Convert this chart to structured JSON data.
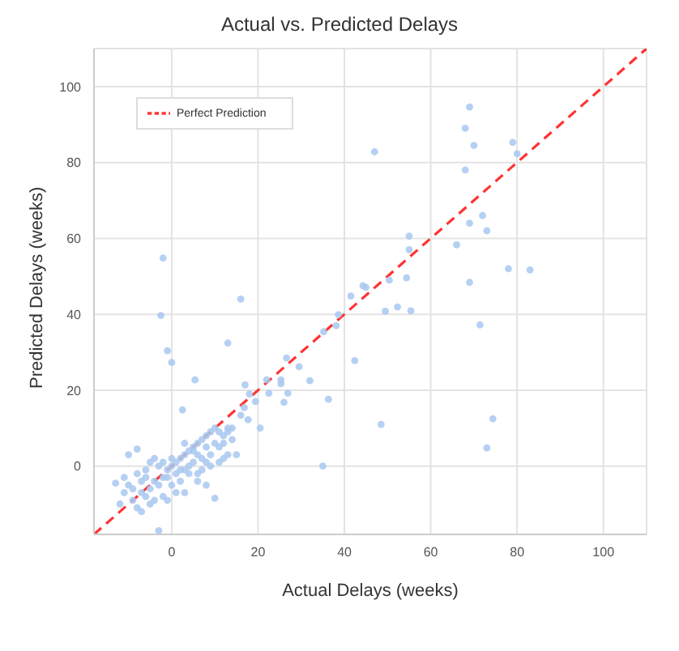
{
  "chart_data": {
    "type": "scatter",
    "title": "Actual vs. Predicted Delays",
    "xlabel": "Actual Delays (weeks)",
    "ylabel": "Predicted Delays (weeks)",
    "xlim": [
      -18,
      110
    ],
    "ylim": [
      -18,
      110
    ],
    "xticks": [
      0,
      20,
      40,
      60,
      80,
      100
    ],
    "yticks": [
      0,
      20,
      40,
      60,
      80,
      100
    ],
    "grid": true,
    "legend": "top left",
    "marker": "circle",
    "series": [
      {
        "color": "#a8c8f0",
        "x": [
          -2,
          -2.5,
          -1,
          0,
          16,
          13,
          5.4,
          2.5,
          47,
          69,
          68,
          70,
          79,
          80,
          68,
          55,
          55,
          66,
          69,
          72,
          73,
          78,
          83,
          69,
          54.4,
          50.4,
          52.3,
          49.5,
          55.4,
          71.4,
          44.3,
          45,
          41.5,
          38.6,
          38.1,
          35.2,
          42.4,
          36.3,
          48.5,
          74.4,
          73,
          35,
          26.6,
          29.5,
          32,
          22,
          25.3,
          25.3,
          22.5,
          26.9,
          26,
          17,
          18,
          19.4,
          17.7,
          20.5,
          16.8,
          16,
          -13,
          -10,
          -8,
          -11,
          -9,
          -8,
          -7,
          -6,
          -5,
          -4,
          -3,
          -2,
          -1,
          0,
          1,
          2,
          3,
          4,
          5,
          6,
          7,
          8,
          9,
          10,
          11,
          12,
          13,
          14,
          15,
          12,
          10,
          8,
          6,
          4,
          2,
          0,
          -2,
          -4,
          -6,
          -8,
          -10,
          -5,
          -3,
          -4,
          -6,
          -7,
          -9,
          -12,
          -3,
          1,
          3,
          5,
          7,
          9,
          11,
          13,
          8,
          6,
          4,
          2,
          0,
          -1,
          -2,
          3,
          5,
          7,
          9,
          11,
          13,
          10,
          12,
          14,
          -5,
          -7,
          -11,
          1,
          3,
          -1,
          6,
          8
        ],
        "values": [
          54.8,
          39.7,
          30.4,
          27.3,
          44,
          32.4,
          22.7,
          14.8,
          82.8,
          94.6,
          89,
          84.5,
          85.3,
          82.3,
          78,
          60.6,
          57,
          58.3,
          64,
          66,
          62,
          52,
          51.7,
          48.4,
          49.6,
          49,
          41.9,
          40.8,
          40.9,
          37.2,
          47.5,
          47.1,
          44.8,
          39.9,
          37,
          35.4,
          27.8,
          17.6,
          11,
          12.5,
          4.8,
          0,
          28.5,
          26.2,
          22.5,
          22.7,
          22.7,
          21.7,
          19.2,
          19.2,
          16.8,
          21.4,
          19,
          17,
          12.2,
          10,
          15.4,
          13.4,
          -4.5,
          3,
          4.5,
          -7,
          -9,
          -11,
          -12,
          -8,
          -6,
          -4,
          -5,
          -3,
          -1,
          0,
          1,
          2,
          3,
          4,
          5,
          6,
          7,
          8,
          9,
          10,
          9,
          8,
          9,
          7,
          3,
          2,
          -8.5,
          -5,
          -4,
          -2,
          -4,
          -5,
          -8,
          -9,
          -3,
          -2,
          -5,
          1,
          0,
          2,
          -1,
          -4,
          -6,
          -10,
          -17,
          -2,
          -1,
          1,
          2,
          3,
          5,
          10,
          5,
          3,
          0,
          -1,
          2,
          -3,
          1,
          6,
          4,
          -1,
          0,
          1,
          3,
          6,
          6,
          10,
          -10,
          -7,
          -3,
          -7,
          -7,
          -9,
          -2,
          1
        ]
      },
      {
        "type": "line",
        "name": "Perfect Prediction",
        "color": "#ff3333",
        "line_style": "dashed",
        "marker": "none",
        "x": [
          -18,
          110
        ],
        "values": [
          -18,
          110
        ]
      }
    ]
  }
}
